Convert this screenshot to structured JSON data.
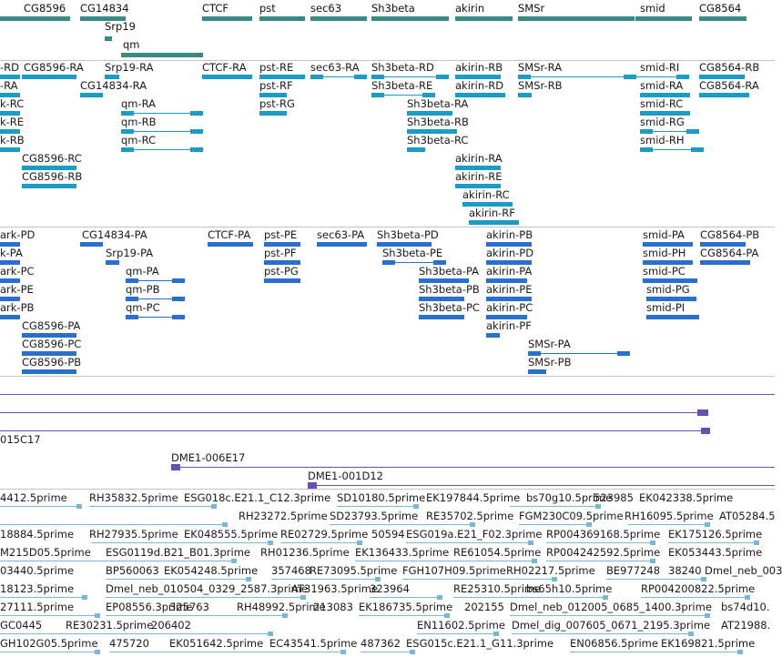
{
  "colors": {
    "gene": "#3a8a84",
    "rnaPrimary": "#1a9cc4",
    "rnaSecondary": "#2a6fcc",
    "clone": "#6a4fb0",
    "est": "#7ab6d8",
    "separator": "#c4c4c4"
  },
  "genes": [
    {
      "label": "CG8596"
    },
    {
      "label": "CG14834"
    },
    {
      "label": "Srp19"
    },
    {
      "label": "qm"
    },
    {
      "label": "CTCF"
    },
    {
      "label": "pst"
    },
    {
      "label": "sec63"
    },
    {
      "label": "Sh3beta"
    },
    {
      "label": "akirin"
    },
    {
      "label": "SMSr"
    },
    {
      "label": "smid"
    },
    {
      "label": "CG8564"
    }
  ],
  "transcripts_primary": [
    {
      "label": "-RD"
    },
    {
      "label": "CG8596-RA"
    },
    {
      "label": "Srp19-RA"
    },
    {
      "label": "CTCF-RA"
    },
    {
      "label": "pst-RE"
    },
    {
      "label": "sec63-RA"
    },
    {
      "label": "Sh3beta-RD"
    },
    {
      "label": "akirin-RB"
    },
    {
      "label": "SMSr-RA"
    },
    {
      "label": "smid-RI"
    },
    {
      "label": "CG8564-RB"
    },
    {
      "label": "-RA"
    },
    {
      "label": "CG14834-RA"
    },
    {
      "label": "pst-RF"
    },
    {
      "label": "Sh3beta-RE"
    },
    {
      "label": "akirin-RD"
    },
    {
      "label": "SMSr-RB"
    },
    {
      "label": "smid-RA"
    },
    {
      "label": "CG8564-RA"
    },
    {
      "label": "k-RC"
    },
    {
      "label": "qm-RA"
    },
    {
      "label": "pst-RG"
    },
    {
      "label": "Sh3beta-RA"
    },
    {
      "label": "smid-RC"
    },
    {
      "label": "k-RE"
    },
    {
      "label": "qm-RB"
    },
    {
      "label": "Sh3beta-RB"
    },
    {
      "label": "smid-RG"
    },
    {
      "label": "k-RB"
    },
    {
      "label": "qm-RC"
    },
    {
      "label": "Sh3beta-RC"
    },
    {
      "label": "smid-RH"
    },
    {
      "label": "CG8596-RC"
    },
    {
      "label": "akirin-RA"
    },
    {
      "label": "CG8596-RB"
    },
    {
      "label": "akirin-RE"
    },
    {
      "label": "akirin-RC"
    },
    {
      "label": "akirin-RF"
    }
  ],
  "transcripts_secondary": [
    {
      "label": "ark-PD"
    },
    {
      "label": "CG14834-PA"
    },
    {
      "label": "CTCF-PA"
    },
    {
      "label": "pst-PE"
    },
    {
      "label": "sec63-PA"
    },
    {
      "label": "Sh3beta-PD"
    },
    {
      "label": "akirin-PB"
    },
    {
      "label": "smid-PA"
    },
    {
      "label": "CG8564-PB"
    },
    {
      "label": "k-PA"
    },
    {
      "label": "Srp19-PA"
    },
    {
      "label": "pst-PF"
    },
    {
      "label": "Sh3beta-PE"
    },
    {
      "label": "akirin-PD"
    },
    {
      "label": "smid-PH"
    },
    {
      "label": "CG8564-PA"
    },
    {
      "label": "ark-PC"
    },
    {
      "label": "qm-PA"
    },
    {
      "label": "pst-PG"
    },
    {
      "label": "Sh3beta-PA"
    },
    {
      "label": "akirin-PA"
    },
    {
      "label": "smid-PC"
    },
    {
      "label": "ark-PE"
    },
    {
      "label": "qm-PB"
    },
    {
      "label": "Sh3beta-PB"
    },
    {
      "label": "akirin-PE"
    },
    {
      "label": "smid-PG"
    },
    {
      "label": "ark-PB"
    },
    {
      "label": "qm-PC"
    },
    {
      "label": "Sh3beta-PC"
    },
    {
      "label": "akirin-PC"
    },
    {
      "label": "smid-PI"
    },
    {
      "label": "CG8596-PA"
    },
    {
      "label": "akirin-PF"
    },
    {
      "label": "CG8596-PC"
    },
    {
      "label": "SMSr-PA"
    },
    {
      "label": "CG8596-PB"
    },
    {
      "label": "SMSr-PB"
    }
  ],
  "clones": [
    {
      "label": "015C17"
    },
    {
      "label": "DME1-006E17"
    },
    {
      "label": "DME1-001D12"
    }
  ],
  "ests": [
    {
      "label": "4412.5prime"
    },
    {
      "label": "RH35832.5prime"
    },
    {
      "label": "ESG018c.E21.1_C12.3prime"
    },
    {
      "label": "SD10180.5prime"
    },
    {
      "label": "EK197844.5prime"
    },
    {
      "label": "bs70g10.5prime"
    },
    {
      "label": "523985"
    },
    {
      "label": "EK042338.5prime"
    },
    {
      "label": "RH23272.5prime"
    },
    {
      "label": "SD23793.5prime"
    },
    {
      "label": "RE35702.5prime"
    },
    {
      "label": "FGM230C09.5prime"
    },
    {
      "label": "RH16095.5prime"
    },
    {
      "label": "AT05284.5"
    },
    {
      "label": "18884.5prime"
    },
    {
      "label": "RH27935.5prime"
    },
    {
      "label": "EK048555.5prime"
    },
    {
      "label": "RE02729.5prime"
    },
    {
      "label": "50594"
    },
    {
      "label": "ESG019a.E21_F02.3prime"
    },
    {
      "label": "RP004369168.5prime"
    },
    {
      "label": "EK175126.5prime"
    },
    {
      "label": "M215D05.5prime"
    },
    {
      "label": "ESG0119d.B21_B01.3prime"
    },
    {
      "label": "RH01236.5prime"
    },
    {
      "label": "EK136433.5prime"
    },
    {
      "label": "RE61054.5prime"
    },
    {
      "label": "RP004242592.5prime"
    },
    {
      "label": "EK053443.5prime"
    },
    {
      "label": "03440.5prime"
    },
    {
      "label": "BP560063"
    },
    {
      "label": "EK054248.5prime"
    },
    {
      "label": "357468"
    },
    {
      "label": "RE73095.5prime"
    },
    {
      "label": "FGH107H09.5prime"
    },
    {
      "label": "RH02217.5prime"
    },
    {
      "label": "BE977248"
    },
    {
      "label": "38240"
    },
    {
      "label": "Dmel_neb_003"
    },
    {
      "label": "18123.5prime"
    },
    {
      "label": "Dmel_neb_010504_0329_2587.3prime"
    },
    {
      "label": "AT31963.5prime"
    },
    {
      "label": "323964"
    },
    {
      "label": "RE25310.5prime"
    },
    {
      "label": "bs65h10.5prime"
    },
    {
      "label": "RP004200822.5prime"
    },
    {
      "label": "27111.5prime"
    },
    {
      "label": "EP08556.3prime"
    },
    {
      "label": "325763"
    },
    {
      "label": "RH48992.5prime"
    },
    {
      "label": "213083"
    },
    {
      "label": "EK186735.5prime"
    },
    {
      "label": "202155"
    },
    {
      "label": "Dmel_neb_012005_0685_1400.3prime"
    },
    {
      "label": "bs74d10."
    },
    {
      "label": "GC0445"
    },
    {
      "label": "RE30231.5prime"
    },
    {
      "label": "206402"
    },
    {
      "label": "EN11602.5prime"
    },
    {
      "label": "Dmel_dig_007605_0671_2195.3prime"
    },
    {
      "label": "AT21988."
    },
    {
      "label": "GH102G05.5prime"
    },
    {
      "label": "475720"
    },
    {
      "label": "EK051642.5prime"
    },
    {
      "label": "EC43541.5prime"
    },
    {
      "label": "487362"
    },
    {
      "label": "ESG015c.E21.1_G11.3prime"
    },
    {
      "label": "EN06856.5prime"
    },
    {
      "label": "EK169821.5prime"
    }
  ]
}
